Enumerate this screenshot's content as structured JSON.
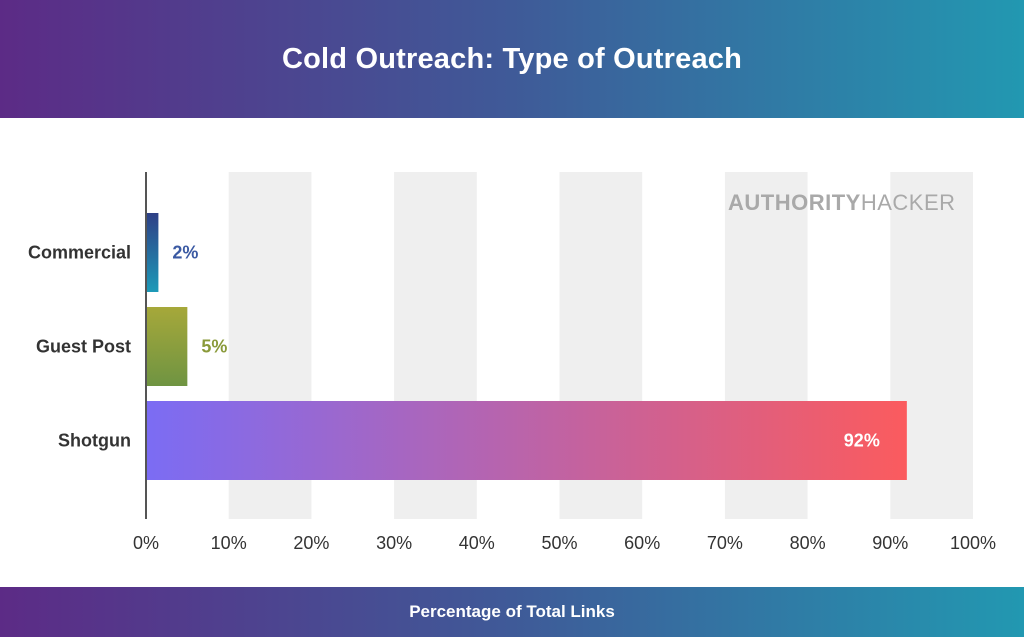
{
  "header": {
    "title": "Cold Outreach: Type of Outreach"
  },
  "footer": {
    "label": "Percentage of Total Links"
  },
  "watermark": {
    "bold": "AUTHORITY",
    "light": "HACKER"
  },
  "colors": {
    "header_gradient_start": "#5c2b86",
    "header_gradient_end": "#2298b1",
    "grid_band": "#efefef",
    "axis": "#555555",
    "category_label": "#333333",
    "commercial_start": "#2e3f86",
    "commercial_end": "#1d9ab8",
    "guest_post_start": "#a6a83a",
    "guest_post_end": "#6f9442",
    "shotgun_start": "#7b6cf4",
    "shotgun_end": "#fb5b5e",
    "commercial_label": "#3b5aa3",
    "guest_post_label": "#8a9a3a",
    "shotgun_label": "#ffffff"
  },
  "chart_data": {
    "type": "bar",
    "orientation": "horizontal",
    "title": "Cold Outreach: Type of Outreach",
    "xlabel": "Percentage of Total Links",
    "ylabel": "",
    "categories": [
      "Commercial",
      "Guest Post",
      "Shotgun"
    ],
    "values": [
      1.5,
      5,
      92
    ],
    "value_labels": [
      "2%",
      "5%",
      "92%"
    ],
    "xlim": [
      0,
      100
    ],
    "x_ticks": [
      0,
      10,
      20,
      30,
      40,
      50,
      60,
      70,
      80,
      90,
      100
    ],
    "x_tick_labels": [
      "0%",
      "10%",
      "20%",
      "30%",
      "40%",
      "50%",
      "60%",
      "70%",
      "80%",
      "90%",
      "100%"
    ],
    "grid": "alternating vertical bands"
  }
}
